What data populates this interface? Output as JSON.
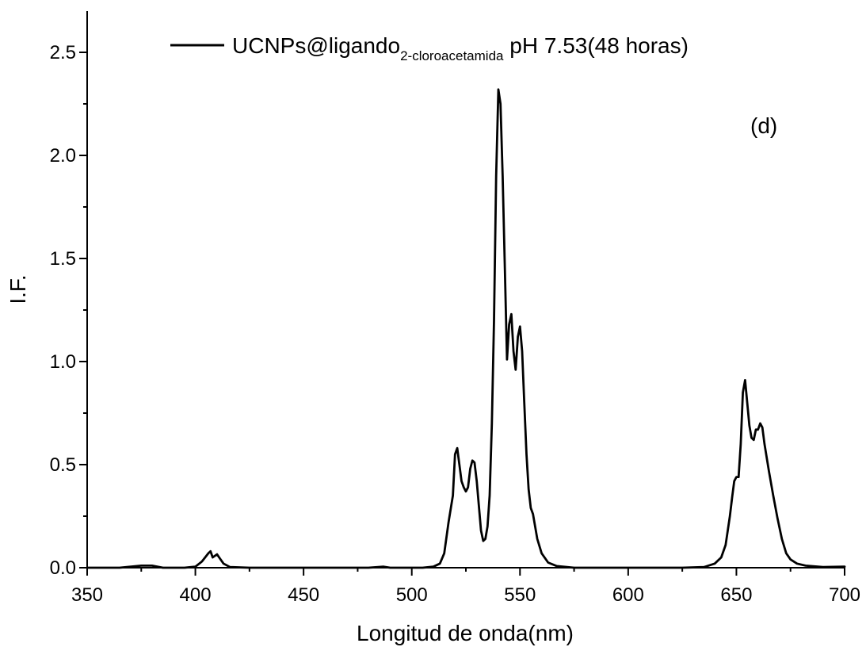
{
  "chart_data": {
    "type": "line",
    "title": "",
    "xlabel": "Longitud de onda(nm)",
    "ylabel": "I.F.",
    "xlim": [
      350,
      700
    ],
    "ylim": [
      0,
      2.7
    ],
    "x_ticks": [
      350,
      400,
      450,
      500,
      550,
      600,
      650,
      700
    ],
    "x_tick_labels": [
      "350",
      "400",
      "450",
      "500",
      "550",
      "600",
      "650",
      "700"
    ],
    "y_ticks": [
      0,
      0.5,
      1.0,
      1.5,
      2.0,
      2.5
    ],
    "y_tick_labels": [
      "0.0",
      "0.5",
      "1.0",
      "1.5",
      "2.0",
      "2.5"
    ],
    "grid": false,
    "legend_position": "top",
    "annotation": "(d)",
    "series": [
      {
        "name": "UCNPs@ligando",
        "name_subscript": "2-cloroacetamida",
        "name_suffix": " pH 7.53(48 horas)",
        "color": "#000000",
        "points": [
          [
            350,
            0.0
          ],
          [
            365,
            0.0
          ],
          [
            375,
            0.01
          ],
          [
            380,
            0.01
          ],
          [
            385,
            0.0
          ],
          [
            395,
            0.0
          ],
          [
            400,
            0.005
          ],
          [
            403,
            0.03
          ],
          [
            406,
            0.07
          ],
          [
            407,
            0.08
          ],
          [
            408,
            0.05
          ],
          [
            410,
            0.065
          ],
          [
            411,
            0.05
          ],
          [
            413,
            0.02
          ],
          [
            416,
            0.003
          ],
          [
            425,
            0.0
          ],
          [
            440,
            0.0
          ],
          [
            460,
            0.0
          ],
          [
            480,
            0.0
          ],
          [
            487,
            0.005
          ],
          [
            490,
            0.0
          ],
          [
            505,
            0.0
          ],
          [
            510,
            0.005
          ],
          [
            513,
            0.02
          ],
          [
            515,
            0.07
          ],
          [
            517,
            0.22
          ],
          [
            519,
            0.35
          ],
          [
            520,
            0.55
          ],
          [
            521,
            0.58
          ],
          [
            522,
            0.5
          ],
          [
            523,
            0.42
          ],
          [
            524,
            0.39
          ],
          [
            525,
            0.37
          ],
          [
            526,
            0.39
          ],
          [
            527,
            0.48
          ],
          [
            528,
            0.52
          ],
          [
            529,
            0.51
          ],
          [
            530,
            0.42
          ],
          [
            531,
            0.3
          ],
          [
            532,
            0.18
          ],
          [
            533,
            0.13
          ],
          [
            534,
            0.14
          ],
          [
            535,
            0.2
          ],
          [
            536,
            0.35
          ],
          [
            537,
            0.7
          ],
          [
            538,
            1.2
          ],
          [
            539,
            1.9
          ],
          [
            540,
            2.32
          ],
          [
            541,
            2.25
          ],
          [
            542,
            1.9
          ],
          [
            543,
            1.45
          ],
          [
            544,
            1.01
          ],
          [
            545,
            1.18
          ],
          [
            546,
            1.23
          ],
          [
            547,
            1.05
          ],
          [
            548,
            0.96
          ],
          [
            549,
            1.12
          ],
          [
            550,
            1.17
          ],
          [
            551,
            1.05
          ],
          [
            552,
            0.8
          ],
          [
            553,
            0.55
          ],
          [
            554,
            0.38
          ],
          [
            555,
            0.29
          ],
          [
            556,
            0.26
          ],
          [
            557,
            0.2
          ],
          [
            558,
            0.14
          ],
          [
            560,
            0.07
          ],
          [
            563,
            0.025
          ],
          [
            567,
            0.008
          ],
          [
            575,
            0.0
          ],
          [
            600,
            0.0
          ],
          [
            625,
            0.0
          ],
          [
            635,
            0.003
          ],
          [
            640,
            0.02
          ],
          [
            643,
            0.05
          ],
          [
            645,
            0.11
          ],
          [
            647,
            0.25
          ],
          [
            648,
            0.34
          ],
          [
            649,
            0.42
          ],
          [
            650,
            0.44
          ],
          [
            651,
            0.44
          ],
          [
            652,
            0.6
          ],
          [
            653,
            0.85
          ],
          [
            654,
            0.91
          ],
          [
            655,
            0.8
          ],
          [
            656,
            0.69
          ],
          [
            657,
            0.63
          ],
          [
            658,
            0.62
          ],
          [
            659,
            0.67
          ],
          [
            660,
            0.67
          ],
          [
            661,
            0.7
          ],
          [
            662,
            0.68
          ],
          [
            663,
            0.6
          ],
          [
            665,
            0.47
          ],
          [
            667,
            0.35
          ],
          [
            669,
            0.24
          ],
          [
            671,
            0.14
          ],
          [
            673,
            0.07
          ],
          [
            675,
            0.04
          ],
          [
            678,
            0.02
          ],
          [
            682,
            0.01
          ],
          [
            690,
            0.003
          ],
          [
            700,
            0.005
          ]
        ]
      }
    ]
  }
}
